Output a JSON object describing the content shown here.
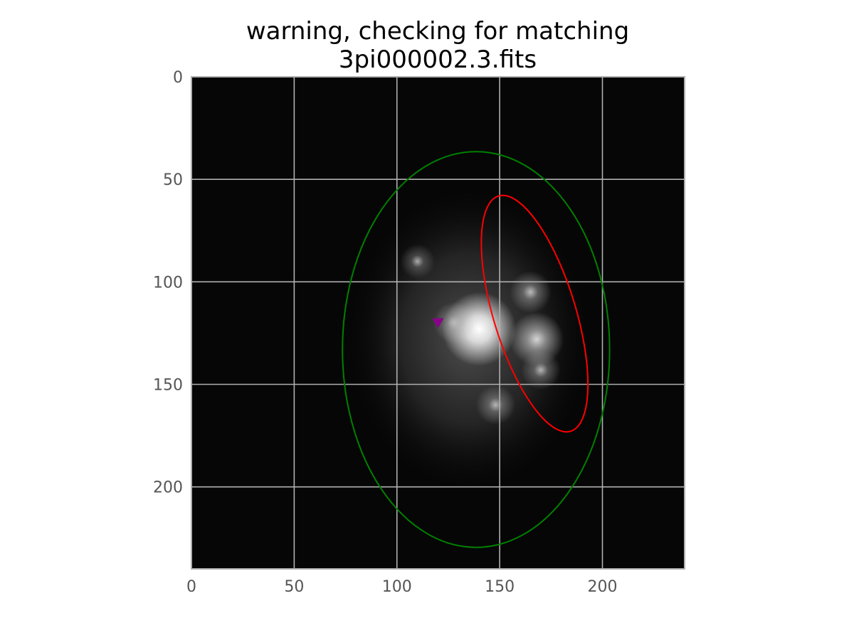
{
  "chart_data": {
    "type": "heatmap",
    "title_lines": [
      "warning, checking for matching",
      "3pi000002.3.fits"
    ],
    "xlabel": "",
    "ylabel": "",
    "xlim": [
      0,
      240
    ],
    "ylim": [
      240,
      0
    ],
    "x_ticks": [
      0,
      50,
      100,
      150,
      200
    ],
    "y_ticks": [
      0,
      50,
      100,
      150,
      200
    ],
    "grid": true,
    "colormap": "gray",
    "image_extent": [
      240,
      240
    ],
    "bright_sources": [
      {
        "x": 140,
        "y": 123,
        "intensity": 1.0
      },
      {
        "x": 168,
        "y": 128,
        "intensity": 0.6
      },
      {
        "x": 165,
        "y": 105,
        "intensity": 0.35
      },
      {
        "x": 170,
        "y": 143,
        "intensity": 0.3
      },
      {
        "x": 148,
        "y": 160,
        "intensity": 0.3
      },
      {
        "x": 128,
        "y": 120,
        "intensity": 0.35
      },
      {
        "x": 110,
        "y": 90,
        "intensity": 0.2
      }
    ],
    "ellipses": [
      {
        "color": "#008000",
        "cx": 138.5,
        "cy": 133,
        "rx": 65,
        "ry": 96.5,
        "angle_deg": 0
      },
      {
        "color": "#ff0000",
        "cx": 167,
        "cy": 115.5,
        "rx": 20,
        "ry": 60,
        "angle_deg": -17
      }
    ],
    "markers": [
      {
        "shape": "triangle-down",
        "color": "#8b008b",
        "x": 120,
        "y": 120
      }
    ]
  }
}
